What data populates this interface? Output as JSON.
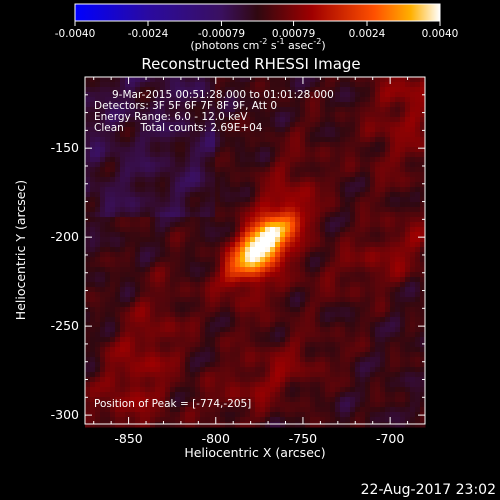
{
  "chart_data": {
    "type": "heatmap",
    "title": "Reconstructed RHESSI Image",
    "xlabel": "Heliocentric X (arcsec)",
    "ylabel": "Heliocentric Y (arcsec)",
    "xlim": [
      -875,
      -680
    ],
    "ylim": [
      -305,
      -110
    ],
    "xticks": [
      "-850",
      "-800",
      "-750",
      "-700"
    ],
    "xtick_values": [
      -850,
      -800,
      -750,
      -700
    ],
    "yticks": [
      "-150",
      "-200",
      "-250",
      "-300"
    ],
    "ytick_values": [
      -150,
      -200,
      -250,
      -300
    ],
    "colorbar": {
      "min": -0.004,
      "max": 0.004,
      "ticks": [
        "-0.0040",
        "-0.0024",
        "-0.00079",
        "0.00079",
        "0.0024",
        "0.0040"
      ],
      "tick_values": [
        -0.004,
        -0.0024,
        -0.00079,
        0.00079,
        0.0024,
        0.004
      ],
      "units_prefix": "(photons cm",
      "units_exp1": "-2",
      "units_mid": " s",
      "units_exp2": "-1",
      "units_mid2": " asec",
      "units_exp3": "-2",
      "units_suffix": ")"
    },
    "peak": {
      "x": -774,
      "y": -205
    },
    "annotations": [
      "9-Mar-2015 00:51:28.000 to 01:01:28.000",
      "Detectors: 3F 5F 6F 7F 8F 9F, Att 0",
      "Energy Range: 6.0 - 12.0 keV",
      "Clean     Total counts: 2.69E+04"
    ],
    "peak_label": "Position of Peak = [-774,-205]"
  },
  "footer": {
    "date": "22-Aug-2017 23:02"
  },
  "colors": {
    "background": "#000000",
    "foreground": "#ffffff"
  }
}
